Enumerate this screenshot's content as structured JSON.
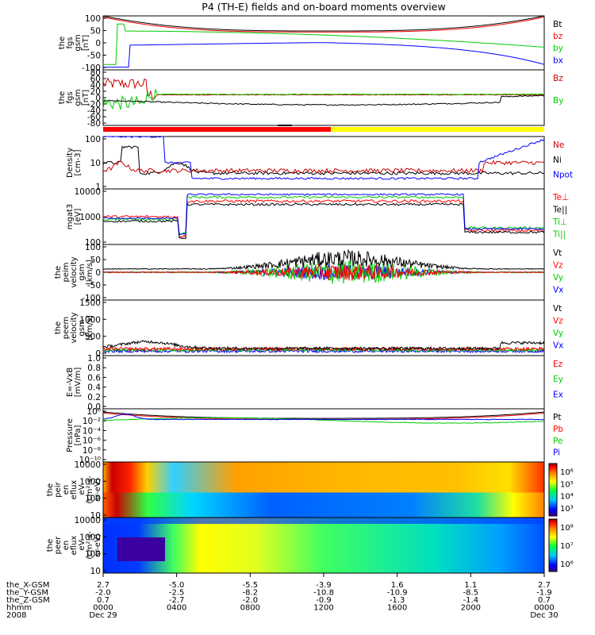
{
  "chart_data": {
    "type": "line",
    "title": "P4 (TH-E) fields and on-board moments overview",
    "date_start": "Dec 29",
    "date_end": "Dec 30",
    "x_ticks": [
      "0000",
      "0400",
      "0800",
      "1200",
      "1600",
      "2000",
      "0000"
    ],
    "footer": {
      "labels": [
        "the_X-GSM",
        "the_Y-GSM",
        "the_Z-GSM",
        "hhmm",
        "2008"
      ],
      "rows": [
        [
          "2.7",
          "-5.0",
          "-5.5",
          "-3.9",
          "1.6",
          "1.1",
          "2.7"
        ],
        [
          "-2.0",
          "-2.5",
          "-8.2",
          "-10.8",
          "-10.9",
          "-8.5",
          "-1.9"
        ],
        [
          "0.7",
          "-2.7",
          "-2.0",
          "-0.9",
          "-1.3",
          "-1.4",
          "0.7"
        ]
      ]
    },
    "bar_colors": {
      "red": "#ff0000",
      "yellow": "#ffff00"
    },
    "panels": [
      {
        "id": "fgs",
        "ylabel": [
          "the",
          "fgs",
          "gsm",
          "[nT]"
        ],
        "yticks": [
          "100",
          "50",
          "0",
          "-50",
          "-100"
        ],
        "ylim": [
          -100,
          100
        ],
        "legend": [
          {
            "text": "Bt",
            "color": "#000000"
          },
          {
            "text": "bz",
            "color": "#ff0000"
          },
          {
            "text": "by",
            "color": "#00cc00"
          },
          {
            "text": "bx",
            "color": "#0000ff"
          }
        ]
      },
      {
        "id": "fgs_dev",
        "ylabel": [
          "the",
          "fgs",
          "gsm",
          "[nT]"
        ],
        "yticks": [
          "80",
          "60",
          "40",
          "20",
          "0",
          "-20",
          "-40",
          "-60",
          "-80"
        ],
        "ylim": [
          -90,
          90
        ],
        "legend": [
          {
            "text": "Bz",
            "color": "#cc0000"
          },
          {
            "text": "By",
            "color": "#00cc00"
          }
        ]
      },
      {
        "id": "density",
        "ylabel": [
          "Density",
          "[cm-3]"
        ],
        "yticks": [
          "100",
          "10",
          "1"
        ],
        "log": true,
        "legend": [
          {
            "text": "Ne",
            "color": "#cc0000"
          },
          {
            "text": "Ni",
            "color": "#000000"
          },
          {
            "text": "Npot",
            "color": "#0000ff"
          }
        ]
      },
      {
        "id": "temp",
        "ylabel": [
          "mgat3",
          "[eV]"
        ],
        "yticks": [
          "10000",
          "1000",
          "100"
        ],
        "log": true,
        "legend": [
          {
            "text": "Te⊥",
            "color": "#ff0000"
          },
          {
            "text": "Te||",
            "color": "#000000"
          },
          {
            "text": "Ti⊥",
            "color": "#00cc00"
          },
          {
            "text": "Ti||",
            "color": "#00cc00"
          }
        ]
      },
      {
        "id": "peim",
        "ylabel": [
          "the",
          "peim",
          "velocity",
          "gsm",
          "[km/s]"
        ],
        "yticks": [
          "100",
          "50",
          "0",
          "-50",
          "-100"
        ],
        "ylim": [
          -100,
          100
        ],
        "legend": [
          {
            "text": "Vt",
            "color": "#000000"
          },
          {
            "text": "Vz",
            "color": "#ff0000"
          },
          {
            "text": "Vy",
            "color": "#00cc00"
          },
          {
            "text": "Vx",
            "color": "#0000ff"
          }
        ]
      },
      {
        "id": "peem",
        "ylabel": [
          "the",
          "peem",
          "velocity",
          "gsm",
          "[km/s]"
        ],
        "yticks": [
          "1500",
          "1000",
          "500",
          "0"
        ],
        "ylim": [
          -100,
          1500
        ],
        "legend": [
          {
            "text": "Vt",
            "color": "#000000"
          },
          {
            "text": "Vz",
            "color": "#ff0000"
          },
          {
            "text": "Vy",
            "color": "#00cc00"
          },
          {
            "text": "Vx",
            "color": "#0000ff"
          }
        ]
      },
      {
        "id": "exb",
        "ylabel": [
          "E=-VxB",
          "[mV/m]"
        ],
        "yticks": [
          "1.0",
          "0.8",
          "0.6",
          "0.4",
          "0.2",
          "0.0"
        ],
        "ylim": [
          0,
          1
        ],
        "legend": [
          {
            "text": "Ez",
            "color": "#ff0000"
          },
          {
            "text": "Ey",
            "color": "#00cc00"
          },
          {
            "text": "Ex",
            "color": "#0000ff"
          }
        ]
      },
      {
        "id": "pressure",
        "ylabel": [
          "Pressure",
          "[nPa]"
        ],
        "yticks": [
          "10⁰",
          "10⁻²",
          "10⁻⁴",
          "10⁻⁶",
          "10⁻⁸",
          "10⁻¹⁰"
        ],
        "log": true,
        "legend": [
          {
            "text": "Pt",
            "color": "#000000"
          },
          {
            "text": "Pb",
            "color": "#ff0000"
          },
          {
            "text": "Pe",
            "color": "#00cc00"
          },
          {
            "text": "Pi",
            "color": "#0000ff"
          }
        ]
      },
      {
        "id": "peir",
        "ylabel": [
          "the",
          "peir",
          "en",
          "eflux",
          "eV",
          "(cm²-s-",
          "sr-eV)"
        ],
        "yticks": [
          "10000",
          "1000",
          "100",
          "10"
        ],
        "log": true,
        "cbar_ticks": [
          "10⁶",
          "10⁵",
          "10⁴",
          "10³"
        ]
      },
      {
        "id": "peer",
        "ylabel": [
          "the",
          "peer",
          "en",
          "eflux",
          "eV",
          "(cm²-s-",
          "sr-eV)"
        ],
        "yticks": [
          "10000",
          "1000",
          "100",
          "10"
        ],
        "log": true,
        "cbar_ticks": [
          "10⁸",
          "10⁷",
          "10⁶"
        ]
      }
    ]
  }
}
